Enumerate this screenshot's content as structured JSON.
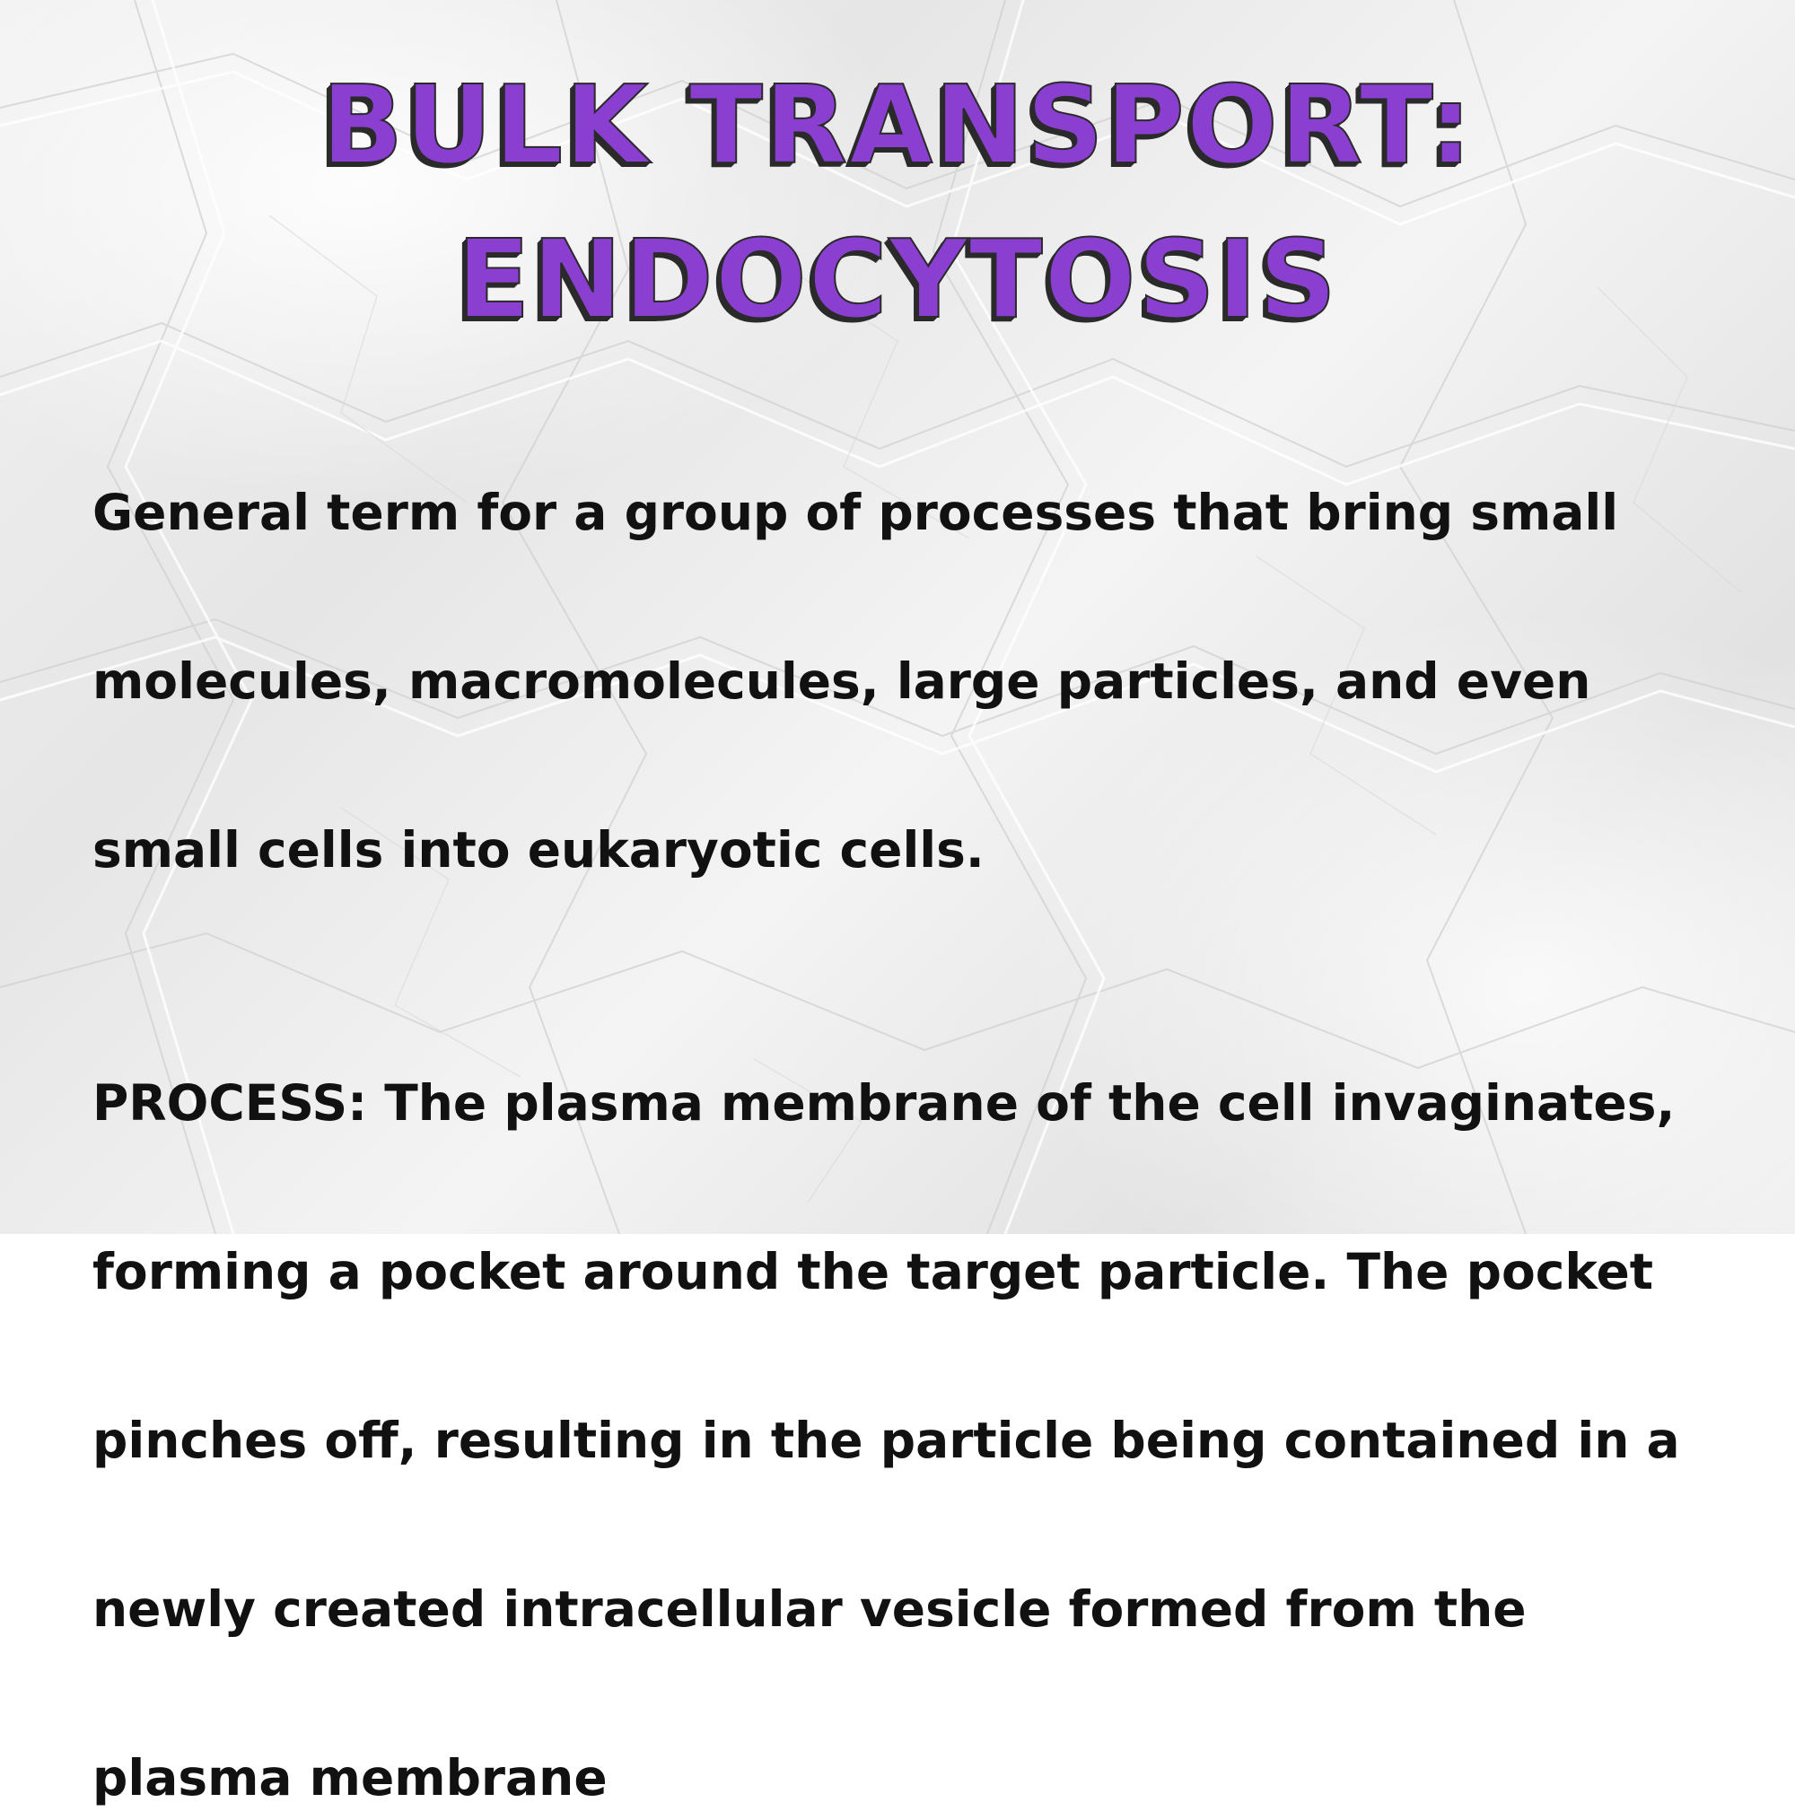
{
  "title": {
    "line1": "BULK TRANSPORT:",
    "line2": "ENDOCYTOSIS"
  },
  "colors": {
    "title_fill": "#8a3fd1",
    "title_shadow": "#2a2a2a",
    "body_text": "#111111",
    "background": "#eeeeee"
  },
  "paragraphs": [
    {
      "lines": [
        "General term for a group of processes that bring small",
        "molecules, macromolecules, large particles, and even",
        "small cells into eukaryotic cells."
      ]
    },
    {
      "lines": [
        "PROCESS: The plasma membrane of the cell invaginates,",
        "forming a pocket around the target particle. The pocket",
        "pinches off, resulting in the particle being contained in a",
        "newly created intracellular vesicle formed from the",
        "plasma membrane"
      ]
    }
  ]
}
